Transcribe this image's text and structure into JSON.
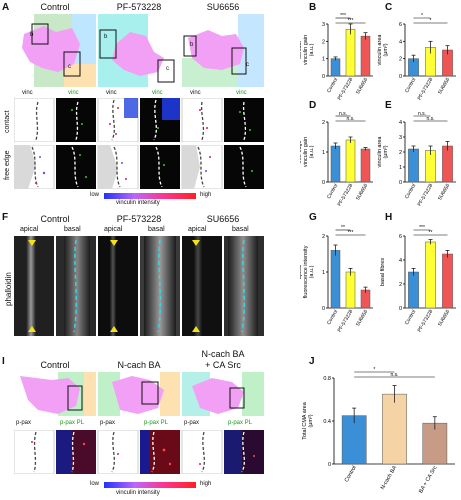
{
  "panel_letters": [
    "A",
    "B",
    "C",
    "D",
    "E",
    "F",
    "G",
    "H",
    "I",
    "J"
  ],
  "panelA": {
    "headers": [
      "Control",
      "PF-573228",
      "SU6656"
    ],
    "sublabels": [
      "vinc",
      "vinc",
      "vinc",
      "vinc",
      "vinc",
      "vinc"
    ],
    "row_labels": [
      "contact",
      "free edge"
    ],
    "colorbar": {
      "low": "low",
      "high": "high",
      "caption": "vinculin intensity"
    },
    "inset_letters": [
      "b",
      "c",
      "b",
      "c",
      "b",
      "c"
    ]
  },
  "panelF": {
    "headers": [
      "Control",
      "PF-573228",
      "SU6656"
    ],
    "sublabels": [
      "apical",
      "basal",
      "apical",
      "basal",
      "apical",
      "basal"
    ],
    "row_label": "phalloidin"
  },
  "panelI": {
    "headers": [
      "Control",
      "N-cach BA",
      "N-cach BA\n+ CA Src"
    ],
    "sublabels": [
      "p-pax",
      "p-pax PL",
      "p-pax",
      "p-pax PL",
      "p-pax",
      "p-pax PL"
    ],
    "colorbar": {
      "low": "low",
      "high": "high",
      "caption": "vinculin intensity"
    }
  },
  "chart_data": [
    {
      "panel": "B",
      "type": "bar",
      "categories": [
        "Control",
        "PF-573228",
        "SU6656"
      ],
      "values": [
        1.0,
        2.7,
        2.3
      ],
      "errors": [
        0.1,
        0.3,
        0.2
      ],
      "colors": [
        "#3a8fd6",
        "#ffff33",
        "#ee5555"
      ],
      "ylabel": "contact\nvinculin gain\n(a.u.)",
      "ylim": [
        0,
        3
      ],
      "yticks": [
        0,
        1,
        2,
        3
      ],
      "significance": [
        {
          "from": 0,
          "to": 1,
          "label": "***"
        },
        {
          "from": 0,
          "to": 2,
          "label": "***"
        }
      ]
    },
    {
      "panel": "C",
      "type": "bar",
      "categories": [
        "Control",
        "PF-573228",
        "SU6656"
      ],
      "values": [
        2.0,
        3.3,
        3.0
      ],
      "errors": [
        0.4,
        0.7,
        0.5
      ],
      "colors": [
        "#3a8fd6",
        "#ffff33",
        "#ee5555"
      ],
      "ylabel": "vinculin area\n(μm²)",
      "ylim": [
        0,
        6
      ],
      "yticks": [
        0,
        2,
        4,
        6
      ],
      "significance": [
        {
          "from": 0,
          "to": 1,
          "label": "*"
        },
        {
          "from": 0,
          "to": 2,
          "label": "*"
        }
      ]
    },
    {
      "panel": "D",
      "type": "bar",
      "categories": [
        "Control",
        "PF-573228",
        "SU6656"
      ],
      "values": [
        1.2,
        1.4,
        1.1
      ],
      "errors": [
        0.1,
        0.1,
        0.05
      ],
      "colors": [
        "#3a8fd6",
        "#ffff33",
        "#ee5555"
      ],
      "ylabel": "free edge\nvinculin gain\n(a.u.)",
      "ylim": [
        0,
        2
      ],
      "yticks": [
        0,
        1,
        2
      ],
      "significance": [
        {
          "from": 0,
          "to": 1,
          "label": "n.s."
        },
        {
          "from": 0,
          "to": 2,
          "label": "n.s."
        }
      ]
    },
    {
      "panel": "E",
      "type": "bar",
      "categories": [
        "Control",
        "PF-573228",
        "SU6656"
      ],
      "values": [
        2.2,
        2.1,
        2.4
      ],
      "errors": [
        0.2,
        0.3,
        0.3
      ],
      "colors": [
        "#3a8fd6",
        "#ffff33",
        "#ee5555"
      ],
      "ylabel": "vinculin area\n(μm²)",
      "ylim": [
        0,
        4
      ],
      "yticks": [
        0,
        1,
        2,
        3,
        4
      ],
      "significance": [
        {
          "from": 0,
          "to": 1,
          "label": "n.s."
        },
        {
          "from": 0,
          "to": 2,
          "label": "n.s."
        }
      ]
    },
    {
      "panel": "G",
      "type": "bar",
      "categories": [
        "Control",
        "PF-573228",
        "SU6656"
      ],
      "values": [
        1.6,
        1.0,
        0.5
      ],
      "errors": [
        0.15,
        0.1,
        0.08
      ],
      "colors": [
        "#3a8fd6",
        "#ffff33",
        "#ee5555"
      ],
      "ylabel": "apical\nfluorescence intensity\n(a.u.)",
      "ylim": [
        0,
        2
      ],
      "yticks": [
        0,
        1,
        2
      ],
      "significance": [
        {
          "from": 0,
          "to": 1,
          "label": "**"
        },
        {
          "from": 0,
          "to": 2,
          "label": "***"
        }
      ]
    },
    {
      "panel": "H",
      "type": "bar",
      "categories": [
        "Control",
        "PF-573228",
        "SU6656"
      ],
      "values": [
        3.0,
        5.5,
        4.5
      ],
      "errors": [
        0.3,
        0.2,
        0.3
      ],
      "colors": [
        "#3a8fd6",
        "#ffff33",
        "#ee5555"
      ],
      "ylabel": "basal fibres",
      "ylim": [
        0,
        6
      ],
      "yticks": [
        0,
        2,
        4,
        6
      ],
      "significance": [
        {
          "from": 0,
          "to": 1,
          "label": "***"
        },
        {
          "from": 0,
          "to": 2,
          "label": "**"
        }
      ]
    },
    {
      "panel": "J",
      "type": "bar",
      "categories": [
        "Control",
        "N-cach BA",
        "N-cach BA + CA Src"
      ],
      "values": [
        0.45,
        0.65,
        0.38
      ],
      "errors": [
        0.07,
        0.08,
        0.06
      ],
      "colors": [
        "#3a8fd6",
        "#f6d3a5",
        "#c79b86"
      ],
      "ylabel": "Total CMA area\n(μm²)",
      "ylim": [
        0,
        0.8
      ],
      "yticks": [
        0,
        0.4,
        0.8
      ],
      "significance": [
        {
          "from": 0,
          "to": 1,
          "label": "*"
        },
        {
          "from": 0,
          "to": 2,
          "label": "n.s."
        }
      ]
    }
  ]
}
